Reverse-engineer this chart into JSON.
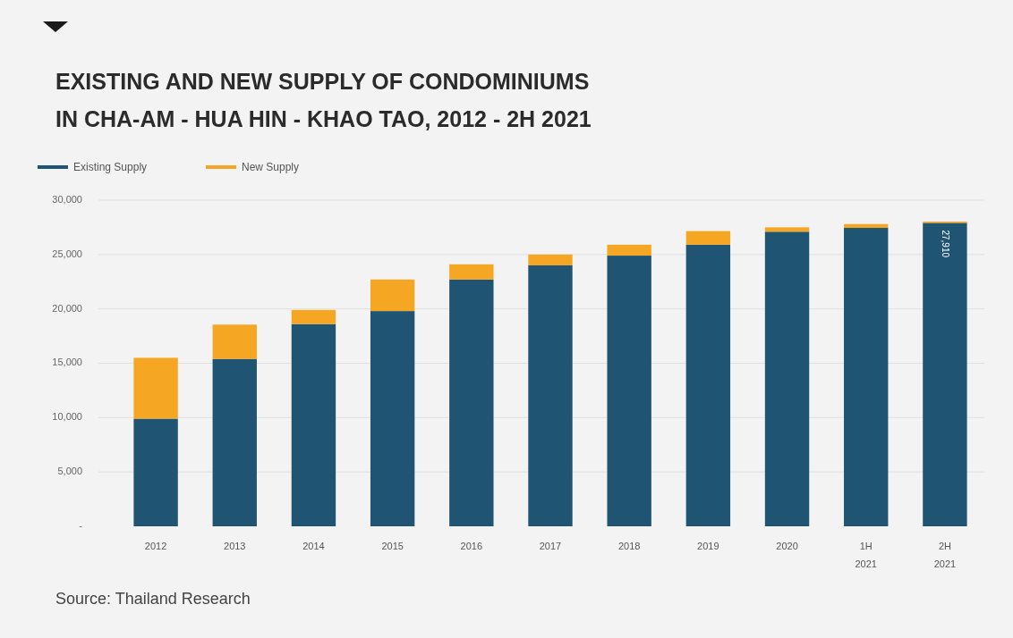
{
  "chart_data": {
    "type": "bar",
    "title": "EXISTING AND NEW SUPPLY OF CONDOMINIUMS\nIN CHA-AM - HUA HIN - KHAO TAO, 2012 - 2H 2021",
    "categories": [
      "2012",
      "2013",
      "2014",
      "2015",
      "2016",
      "2017",
      "2018",
      "2019",
      "2020",
      "1H 2021",
      "2H 2021"
    ],
    "stacked": true,
    "series": [
      {
        "name": "Existing Supply",
        "color": "#1f5573",
        "values": [
          9900,
          15400,
          18600,
          19800,
          22700,
          24000,
          24900,
          25900,
          27100,
          27450,
          27910
        ],
        "value_labels": [
          null,
          null,
          null,
          null,
          null,
          null,
          null,
          null,
          null,
          null,
          "27,910"
        ]
      },
      {
        "name": "New Supply",
        "color": "#f5a623",
        "values": [
          5600,
          3150,
          1300,
          2900,
          1400,
          1000,
          1000,
          1250,
          400,
          350,
          120
        ]
      }
    ],
    "ylim": [
      0,
      30000
    ],
    "yticks": [
      {
        "value": 0,
        "label": "-"
      },
      {
        "value": 5000,
        "label": "5,000"
      },
      {
        "value": 10000,
        "label": "10,000"
      },
      {
        "value": 15000,
        "label": "15,000"
      },
      {
        "value": 20000,
        "label": "20,000"
      },
      {
        "value": 25000,
        "label": "25,000"
      },
      {
        "value": 30000,
        "label": "30,000"
      }
    ],
    "grid": "y",
    "legend": "top left",
    "annotations": [
      "Source: Thailand Research"
    ]
  }
}
